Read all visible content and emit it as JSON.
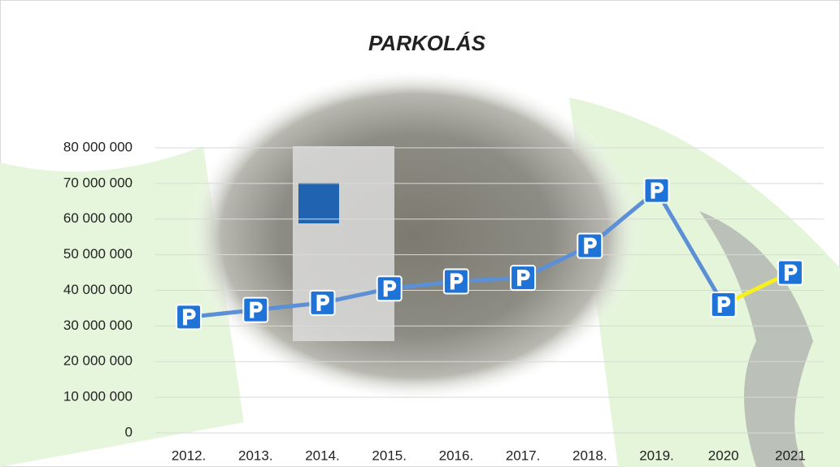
{
  "chart_data": {
    "type": "line",
    "title": "PARKOLÁS",
    "categories": [
      "2012.",
      "2013.",
      "2014.",
      "2015.",
      "2016.",
      "2017.",
      "2018.",
      "2019.",
      "2020",
      "2021"
    ],
    "values": [
      32500000,
      34500000,
      36500000,
      40500000,
      42500000,
      43500000,
      52500000,
      68000000,
      36000000,
      45000000
    ],
    "color": "#5b8fd6",
    "segment_colors": [
      "#5b8fd6",
      "#5b8fd6",
      "#5b8fd6",
      "#5b8fd6",
      "#5b8fd6",
      "#5b8fd6",
      "#5b8fd6",
      "#5b8fd6",
      "#f5f01e"
    ],
    "marker_color": "#1f73d6",
    "ylim": [
      0,
      80000000
    ],
    "yticks": [
      0,
      {
        "value": 10000000,
        "label": "10 000 000"
      },
      {
        "value": 20000000,
        "label": "20 000 000"
      },
      {
        "value": 30000000,
        "label": "30 000 000"
      },
      {
        "value": 40000000,
        "label": "40 000 000"
      },
      {
        "value": 50000000,
        "label": "50 000 000"
      },
      {
        "value": 60000000,
        "label": "60 000 000"
      },
      {
        "value": 70000000,
        "label": "70 000 000"
      },
      {
        "value": 80000000,
        "label": "80 000 000"
      }
    ],
    "grid": true
  }
}
